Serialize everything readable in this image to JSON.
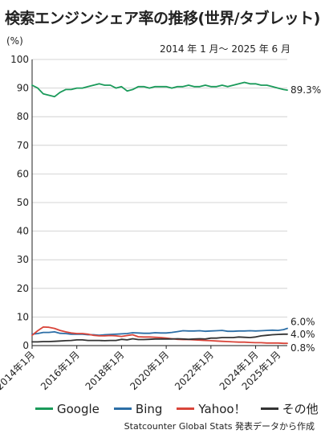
{
  "title": "検索エンジンシェア率の推移(世界/タブレット)",
  "unit_label": "(%)",
  "period_label": "2014 年 1 月～ 2025 年 6 月",
  "source": "Statcounter Global Stats 発表データから作成",
  "colors": {
    "Google": "#1a9a5a",
    "Bing": "#2c6ea6",
    "Yahoo!": "#d9453a",
    "その他": "#333333",
    "grid": "#c9c9c9",
    "axis": "#222222"
  },
  "chart_data": {
    "type": "line",
    "xlabel": "",
    "ylabel": "(%)",
    "ylim": [
      0,
      100
    ],
    "yticks": [
      0,
      10,
      20,
      30,
      40,
      50,
      60,
      70,
      80,
      90,
      100
    ],
    "grid": true,
    "x_range": [
      "2014-01",
      "2025-06"
    ],
    "xtick_labels": [
      "2014年1月",
      "2016年1月",
      "2018年1月",
      "2020年1月",
      "2022年1月",
      "2024年1月",
      "2025年1月"
    ],
    "xtick_dates": [
      "2014-01",
      "2016-01",
      "2018-01",
      "2020-01",
      "2022-01",
      "2024-01",
      "2025-01"
    ],
    "x": [
      "2014-01",
      "2014-04",
      "2014-07",
      "2014-10",
      "2015-01",
      "2015-04",
      "2015-07",
      "2015-10",
      "2016-01",
      "2016-04",
      "2016-07",
      "2016-10",
      "2017-01",
      "2017-04",
      "2017-07",
      "2017-10",
      "2018-01",
      "2018-04",
      "2018-07",
      "2018-10",
      "2019-01",
      "2019-04",
      "2019-07",
      "2019-10",
      "2020-01",
      "2020-04",
      "2020-07",
      "2020-10",
      "2021-01",
      "2021-04",
      "2021-07",
      "2021-10",
      "2022-01",
      "2022-04",
      "2022-07",
      "2022-10",
      "2023-01",
      "2023-04",
      "2023-07",
      "2023-10",
      "2024-01",
      "2024-04",
      "2024-07",
      "2024-10",
      "2025-01",
      "2025-04",
      "2025-06"
    ],
    "series": [
      {
        "name": "Google",
        "values": [
          91.0,
          90.0,
          88.0,
          87.5,
          87.0,
          88.5,
          89.5,
          89.5,
          90.0,
          90.0,
          90.5,
          91.0,
          91.5,
          91.0,
          91.0,
          90.0,
          90.5,
          89.0,
          89.5,
          90.5,
          90.5,
          90.0,
          90.5,
          90.5,
          90.5,
          90.0,
          90.5,
          90.5,
          91.0,
          90.5,
          90.5,
          91.0,
          90.5,
          90.5,
          91.0,
          90.5,
          91.0,
          91.5,
          92.0,
          91.5,
          91.5,
          91.0,
          91.0,
          90.5,
          90.0,
          89.5,
          89.3
        ]
      },
      {
        "name": "Bing",
        "values": [
          4.0,
          4.2,
          4.6,
          4.6,
          4.8,
          4.3,
          4.2,
          4.0,
          4.0,
          4.0,
          3.8,
          3.8,
          3.6,
          3.8,
          3.9,
          4.0,
          4.1,
          4.2,
          4.5,
          4.4,
          4.3,
          4.3,
          4.5,
          4.4,
          4.4,
          4.6,
          4.9,
          5.2,
          5.1,
          5.1,
          5.2,
          5.0,
          5.1,
          5.2,
          5.3,
          5.0,
          5.0,
          5.1,
          5.1,
          5.2,
          5.1,
          5.2,
          5.3,
          5.4,
          5.3,
          5.6,
          6.0
        ]
      },
      {
        "name": "Yahoo!",
        "values": [
          3.6,
          5.2,
          6.5,
          6.4,
          6.0,
          5.3,
          4.8,
          4.4,
          4.2,
          4.2,
          4.0,
          3.6,
          3.4,
          3.4,
          3.5,
          3.4,
          3.2,
          3.5,
          3.8,
          3.1,
          3.0,
          3.0,
          2.9,
          2.8,
          2.6,
          2.4,
          2.2,
          2.1,
          2.1,
          2.0,
          1.9,
          1.8,
          1.7,
          1.6,
          1.5,
          1.4,
          1.3,
          1.2,
          1.2,
          1.1,
          1.0,
          1.0,
          0.9,
          0.9,
          0.9,
          0.8,
          0.8
        ]
      },
      {
        "name": "その他",
        "values": [
          1.3,
          1.3,
          1.4,
          1.4,
          1.5,
          1.6,
          1.7,
          1.8,
          2.0,
          2.0,
          1.8,
          1.8,
          1.8,
          1.7,
          1.8,
          1.8,
          2.2,
          2.0,
          2.4,
          2.1,
          2.1,
          2.2,
          2.3,
          2.3,
          2.3,
          2.3,
          2.4,
          2.3,
          2.2,
          2.3,
          2.4,
          2.3,
          2.6,
          2.6,
          2.8,
          2.8,
          2.8,
          3.0,
          2.9,
          2.8,
          3.0,
          3.4,
          3.6,
          3.8,
          3.9,
          4.0,
          4.0
        ]
      }
    ],
    "end_labels": [
      {
        "series": "Google",
        "text": "89.3%"
      },
      {
        "series": "Bing",
        "text": "6.0%"
      },
      {
        "series": "その他",
        "text": "4.0%"
      },
      {
        "series": "Yahoo!",
        "text": "0.8%"
      }
    ],
    "legend": [
      "Google",
      "Bing",
      "Yahoo！",
      "その他"
    ],
    "legend_placement": "bottom"
  }
}
